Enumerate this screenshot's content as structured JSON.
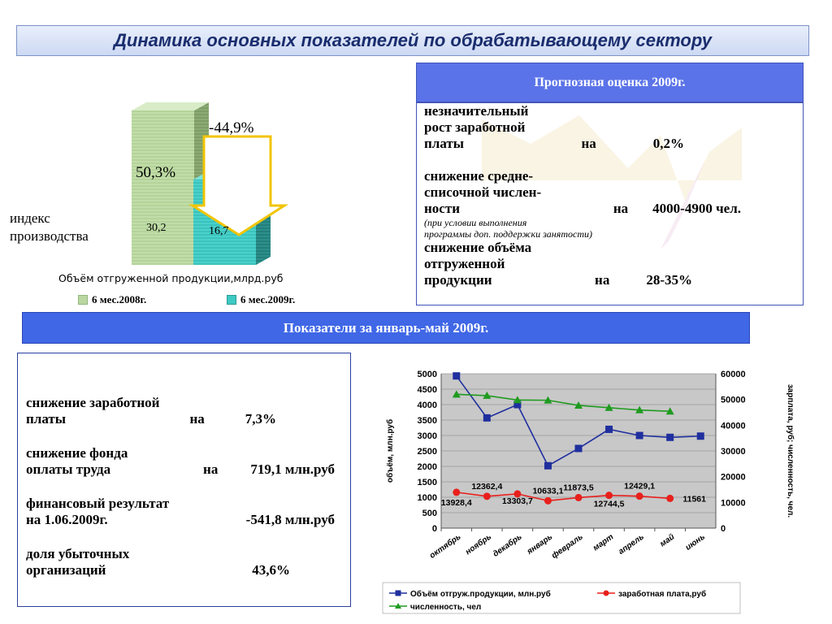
{
  "title": "Динамика основных показателей  по обрабатывающему сектору",
  "left_chart": {
    "index_label_line1": "индекс",
    "index_label_line2": "производства",
    "pct_2008": "50,3%",
    "pct_change": "-44,9%",
    "caption": "Объём отгруженной продукции,млрд.руб",
    "legend": [
      "6 мес.2008г.",
      "6 мес.2009г."
    ]
  },
  "forecast": {
    "header": "Прогнозная оценка 2009г.",
    "item1_l1": "незначительный",
    "item1_l2": "рост заработной",
    "item1_l3": "платы",
    "item1_on": "на",
    "item1_val": "0,2%",
    "item2_l1": "снижение средне-",
    "item2_l2": "списочной  числен-",
    "item2_l3": "ности",
    "item2_on": "на",
    "item2_val": "4000-4900 чел.",
    "item2_note1": "(при условии выполнения",
    "item2_note2": "программы доп. поддержки занятости)",
    "item3_l1": "снижение объёма",
    "item3_l2": "отгруженной",
    "item3_l3": "продукции",
    "item3_on": "на",
    "item3_val": "28-35%"
  },
  "jan_may": {
    "header": "Показатели за январь-май 2009г.",
    "s1_l1": "снижение заработной",
    "s1_l2": "платы",
    "s1_on": "на",
    "s1_val": "7,3%",
    "s2_l1": "снижение фонда",
    "s2_l2": "оплаты  труда",
    "s2_on": "на",
    "s2_val": "719,1 млн.руб",
    "s3_l1": "финансовый результат",
    "s3_l2": "на 1.06.2009г.",
    "s3_val": "-541,8 млн.руб",
    "s4_l1": "доля убыточных",
    "s4_l2": "организаций",
    "s4_val": "43,6%"
  },
  "chart_data": [
    {
      "type": "bar",
      "categories": [
        "6 мес.2008г.",
        "6 мес.2009г."
      ],
      "values": [
        30.2,
        16.7
      ],
      "value_labels": [
        "30,2",
        "16,7"
      ],
      "title": "Объём отгруженной продукции,млрд.руб",
      "colors": [
        "#b9d7a1",
        "#3ec9c4"
      ]
    },
    {
      "type": "line",
      "categories": [
        "октябрь",
        "ноябрь",
        "декабрь",
        "январь",
        "февраль",
        "март",
        "апрель",
        "май",
        "июнь"
      ],
      "ylabel_left": "объём, млн.руб",
      "ylabel_right": "зарплата, руб; численность, чел.",
      "ylim_left": [
        0,
        5000
      ],
      "yticks_left": [
        0,
        500,
        1000,
        1500,
        2000,
        2500,
        3000,
        3500,
        4000,
        4500,
        5000
      ],
      "ylim_right": [
        0,
        60000
      ],
      "yticks_right": [
        "0",
        "10000",
        "20000",
        "30000",
        "40000",
        "50000",
        "60000"
      ],
      "series": [
        {
          "name": "Объём отгруж.продукции, млн.руб",
          "axis": "left",
          "color": "#1f2f9e",
          "values": [
            4930,
            3570,
            4000,
            2020,
            2580,
            3200,
            3000,
            2940,
            2980
          ]
        },
        {
          "name": "заработная плата,руб",
          "axis": "right",
          "color": "#e8201c",
          "values": [
            13928.4,
            12362.4,
            13303.7,
            10633.1,
            11873.5,
            12744.5,
            12429.1,
            11561,
            null
          ],
          "labels": [
            "13928,4",
            "12362,4",
            "13303,7",
            "10633,1",
            "11873,5",
            "12744,5",
            "12429,1",
            "11561",
            ""
          ]
        },
        {
          "name": "численность, чел",
          "axis": "right",
          "color": "#1f9b1f",
          "values": [
            52000,
            51500,
            49800,
            49700,
            47700,
            46800,
            45900,
            45400,
            null
          ]
        }
      ]
    }
  ]
}
